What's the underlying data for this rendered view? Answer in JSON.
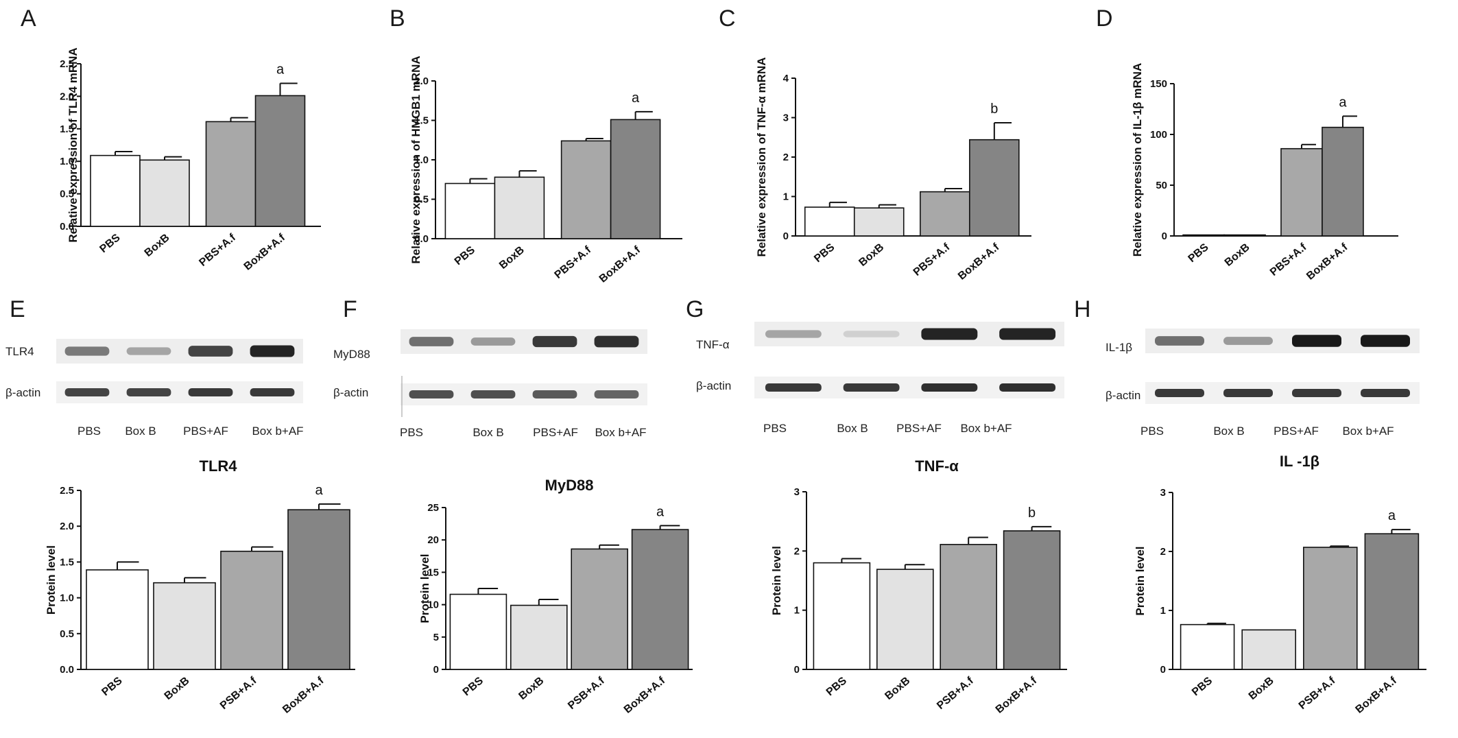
{
  "panel_letters": [
    "A",
    "B",
    "C",
    "D",
    "E",
    "F",
    "G",
    "H"
  ],
  "colors": {
    "c0": "#ffffff",
    "c1": "#e2e2e2",
    "c2": "#a8a8a8",
    "c3": "#858585",
    "axis": "#111111"
  },
  "chart_data": [
    {
      "id": "A",
      "type": "bar",
      "title": "",
      "ylabel": "Relative expression of TLR4 mRNA",
      "categories": [
        "PBS",
        "BoxB",
        "PBS+A.f",
        "BoxB+A.f"
      ],
      "values": [
        1.09,
        1.02,
        1.61,
        2.01
      ],
      "errors": [
        0.06,
        0.05,
        0.06,
        0.19
      ],
      "yticks": [
        "0.0",
        "0.5",
        "1.0",
        "1.5",
        "2.0",
        "2.5"
      ],
      "ylim": [
        0,
        2.5
      ],
      "annotations": [
        "",
        "",
        "",
        "a"
      ]
    },
    {
      "id": "B",
      "type": "bar",
      "title": "",
      "ylabel": "Relative expression of HMGB1 mRNA",
      "categories": [
        "PBS",
        "BoxB",
        "PBS+A.f",
        "BoxB+A.f"
      ],
      "values": [
        0.7,
        0.78,
        1.24,
        1.51
      ],
      "errors": [
        0.06,
        0.08,
        0.03,
        0.1
      ],
      "yticks": [
        "0.0",
        "0.5",
        "1.0",
        "1.5",
        "2.0"
      ],
      "ylim": [
        0,
        2.0
      ],
      "annotations": [
        "",
        "",
        "",
        "a"
      ]
    },
    {
      "id": "C",
      "type": "bar",
      "title": "",
      "ylabel": "Relative expression of TNF-α mRNA",
      "categories": [
        "PBS",
        "BoxB",
        "PBS+A.f",
        "BoxB+A.f"
      ],
      "values": [
        0.73,
        0.71,
        1.12,
        2.44
      ],
      "errors": [
        0.12,
        0.08,
        0.08,
        0.43
      ],
      "yticks": [
        "0",
        "1",
        "2",
        "3",
        "4"
      ],
      "ylim": [
        0,
        4
      ],
      "annotations": [
        "",
        "",
        "",
        "b"
      ]
    },
    {
      "id": "D",
      "type": "bar",
      "title": "",
      "ylabel": "Relative expression of IL-1β mRNA",
      "categories": [
        "PBS",
        "BoxB",
        "PBS+A.f",
        "BoxB+A.f"
      ],
      "values": [
        1,
        1,
        86,
        107
      ],
      "errors": [
        0,
        0,
        4,
        11
      ],
      "yticks": [
        "0",
        "50",
        "100",
        "150"
      ],
      "ylim": [
        0,
        150
      ],
      "annotations": [
        "",
        "",
        "",
        "a"
      ]
    },
    {
      "id": "E",
      "type": "bar",
      "title": "TLR4",
      "ylabel": "Protein level",
      "categories": [
        "PBS",
        "BoxB",
        "PSB+A.f",
        "BoxB+A.f"
      ],
      "values": [
        1.39,
        1.21,
        1.65,
        2.23
      ],
      "errors": [
        0.11,
        0.07,
        0.06,
        0.08
      ],
      "yticks": [
        "0.0",
        "0.5",
        "1.0",
        "1.5",
        "2.0",
        "2.5"
      ],
      "ylim": [
        0,
        2.5
      ],
      "annotations": [
        "",
        "",
        "",
        "a"
      ]
    },
    {
      "id": "F",
      "type": "bar",
      "title": "MyD88",
      "ylabel": "Protein level",
      "categories": [
        "PBS",
        "BoxB",
        "PSB+A.f",
        "BoxB+A.f"
      ],
      "values": [
        11.6,
        9.9,
        18.6,
        21.6
      ],
      "errors": [
        0.9,
        0.9,
        0.6,
        0.6
      ],
      "yticks": [
        "0",
        "5",
        "10",
        "15",
        "20",
        "25"
      ],
      "ylim": [
        0,
        25
      ],
      "annotations": [
        "",
        "",
        "",
        "a"
      ]
    },
    {
      "id": "G",
      "type": "bar",
      "title": "TNF-α",
      "ylabel": "Protein level",
      "categories": [
        "PBS",
        "BoxB",
        "PSB+A.f",
        "BoxB+A.f"
      ],
      "values": [
        1.8,
        1.69,
        2.11,
        2.34
      ],
      "errors": [
        0.07,
        0.08,
        0.12,
        0.07
      ],
      "yticks": [
        "0",
        "1",
        "2",
        "3"
      ],
      "ylim": [
        0,
        3
      ],
      "annotations": [
        "",
        "",
        "",
        "b"
      ]
    },
    {
      "id": "H",
      "type": "bar",
      "title": "IL -1β",
      "ylabel": "Protein level",
      "categories": [
        "PBS",
        "BoxB",
        "PSB+A.f",
        "BoxB+A.f"
      ],
      "values": [
        0.76,
        0.67,
        2.07,
        2.3
      ],
      "errors": [
        0.02,
        0,
        0.02,
        0.07
      ],
      "yticks": [
        "0",
        "1",
        "2",
        "3"
      ],
      "ylim": [
        0,
        3
      ],
      "annotations": [
        "",
        "",
        "",
        "a"
      ]
    }
  ],
  "blots": [
    {
      "id": "E",
      "target": "TLR4",
      "control": "β-actin",
      "lanes": [
        "PBS",
        "Box  B",
        "PBS+AF",
        "Box b+AF"
      ],
      "target_intensity": [
        0.55,
        0.35,
        0.8,
        0.95
      ],
      "control_intensity": [
        0.8,
        0.8,
        0.85,
        0.85
      ]
    },
    {
      "id": "F",
      "target": "MyD88",
      "control": "β-actin",
      "lanes": [
        "PBS",
        "Box  B",
        "PBS+AF",
        "Box b+AF"
      ],
      "target_intensity": [
        0.6,
        0.4,
        0.85,
        0.9
      ],
      "control_intensity": [
        0.75,
        0.75,
        0.7,
        0.65
      ]
    },
    {
      "id": "G",
      "target": "TNF-α",
      "control": "β-actin",
      "lanes": [
        "PBS",
        "Box  B",
        "PBS+AF",
        "Box b+AF"
      ],
      "target_intensity": [
        0.35,
        0.15,
        0.95,
        0.95
      ],
      "control_intensity": [
        0.85,
        0.85,
        0.9,
        0.9
      ]
    },
    {
      "id": "H",
      "target": "IL-1β",
      "control": "β-actin",
      "lanes": [
        "PBS",
        "Box  B",
        "PBS+AF",
        "Box b+AF"
      ],
      "target_intensity": [
        0.6,
        0.4,
        1.0,
        1.0
      ],
      "control_intensity": [
        0.85,
        0.85,
        0.85,
        0.85
      ]
    }
  ]
}
